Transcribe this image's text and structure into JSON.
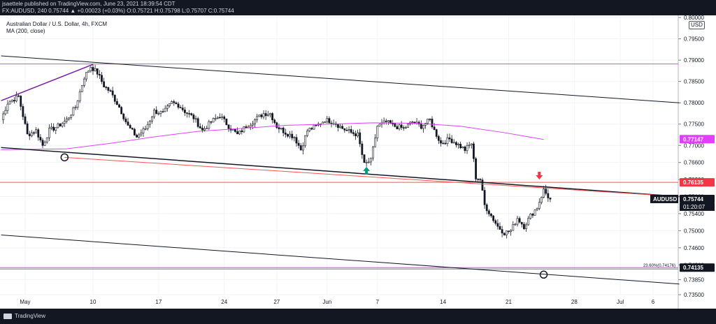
{
  "header": {
    "publisher_line": "jsaettele published on TradingView.com, June 23, 2021 18:39:54 CDT",
    "symbol_line": "FX:AUDUSD, 240  0.75744  ▲ +0.00023 (+0.03%)  O:0.75721  H:0.75798  L:0.75707  C:0.75744"
  },
  "legend": {
    "title": "Australian Dollar / U.S. Dollar, 4h, FXCM",
    "indicator": "MA (200, close)"
  },
  "currency_button": "USD",
  "footer": {
    "brand": "TradingView"
  },
  "colors": {
    "background": "#131722",
    "grid": "#1e222d",
    "candle": "#d1d4dc",
    "channel": "#131722",
    "support": "#ff5252",
    "magenta": "#e040fb",
    "ma": "#e040fb",
    "purple": "#7b1fa2",
    "arrow_up": "#089981",
    "arrow_down": "#f23645"
  },
  "chart_data": {
    "type": "candlestick",
    "symbol": "AUDUSD",
    "timeframe": "4h",
    "ylim": [
      0.735,
      0.8005
    ],
    "y_ticks": [
      "0.80000",
      "0.79500",
      "0.79000",
      "0.78500",
      "0.78000",
      "0.77500",
      "0.77000",
      "0.76600",
      "0.76200",
      "0.75800",
      "0.75400",
      "0.75000",
      "0.74600",
      "0.74200",
      "0.73850",
      "0.73500"
    ],
    "x_ticks": [
      {
        "label": "May",
        "bar": 11
      },
      {
        "label": "10",
        "bar": 42
      },
      {
        "label": "17",
        "bar": 72
      },
      {
        "label": "24",
        "bar": 102
      },
      {
        "label": "27",
        "bar": 126
      },
      {
        "label": "Jun",
        "bar": 149
      },
      {
        "label": "7",
        "bar": 172
      },
      {
        "label": "14",
        "bar": 202
      },
      {
        "label": "21",
        "bar": 232
      },
      {
        "label": "28",
        "bar": 262
      },
      {
        "label": "Jul",
        "bar": 283
      },
      {
        "label": "6",
        "bar": 298
      }
    ],
    "bar_count": 310,
    "path_anchors": [
      [
        0,
        0.776
      ],
      [
        3,
        0.78
      ],
      [
        8,
        0.7815
      ],
      [
        12,
        0.7725
      ],
      [
        16,
        0.7735
      ],
      [
        19,
        0.77
      ],
      [
        22,
        0.7735
      ],
      [
        26,
        0.7745
      ],
      [
        30,
        0.776
      ],
      [
        34,
        0.779
      ],
      [
        38,
        0.786
      ],
      [
        41,
        0.7885
      ],
      [
        44,
        0.787
      ],
      [
        47,
        0.784
      ],
      [
        50,
        0.7825
      ],
      [
        54,
        0.779
      ],
      [
        58,
        0.7745
      ],
      [
        62,
        0.772
      ],
      [
        66,
        0.774
      ],
      [
        70,
        0.778
      ],
      [
        74,
        0.7775
      ],
      [
        78,
        0.78
      ],
      [
        81,
        0.7795
      ],
      [
        84,
        0.778
      ],
      [
        88,
        0.7765
      ],
      [
        92,
        0.7735
      ],
      [
        96,
        0.7755
      ],
      [
        100,
        0.777
      ],
      [
        104,
        0.7745
      ],
      [
        108,
        0.7725
      ],
      [
        112,
        0.7745
      ],
      [
        116,
        0.776
      ],
      [
        120,
        0.7775
      ],
      [
        123,
        0.7775
      ],
      [
        126,
        0.7745
      ],
      [
        130,
        0.773
      ],
      [
        134,
        0.772
      ],
      [
        137,
        0.769
      ],
      [
        140,
        0.7735
      ],
      [
        144,
        0.7745
      ],
      [
        148,
        0.776
      ],
      [
        152,
        0.7755
      ],
      [
        156,
        0.774
      ],
      [
        160,
        0.773
      ],
      [
        163,
        0.7725
      ],
      [
        166,
        0.7655
      ],
      [
        169,
        0.7665
      ],
      [
        172,
        0.7745
      ],
      [
        176,
        0.7755
      ],
      [
        180,
        0.7745
      ],
      [
        184,
        0.774
      ],
      [
        188,
        0.7755
      ],
      [
        192,
        0.7745
      ],
      [
        196,
        0.776
      ],
      [
        198,
        0.7735
      ],
      [
        201,
        0.7705
      ],
      [
        205,
        0.7715
      ],
      [
        208,
        0.7705
      ],
      [
        212,
        0.769
      ],
      [
        215,
        0.7705
      ],
      [
        217,
        0.7625
      ],
      [
        219,
        0.762
      ],
      [
        221,
        0.756
      ],
      [
        224,
        0.7535
      ],
      [
        227,
        0.751
      ],
      [
        230,
        0.7495
      ],
      [
        233,
        0.75
      ],
      [
        236,
        0.753
      ],
      [
        239,
        0.751
      ],
      [
        242,
        0.7535
      ],
      [
        245,
        0.7555
      ],
      [
        248,
        0.7595
      ],
      [
        250,
        0.758
      ],
      [
        251,
        0.7574
      ]
    ],
    "ma200": [
      [
        0,
        0.769
      ],
      [
        30,
        0.7692
      ],
      [
        50,
        0.7705
      ],
      [
        70,
        0.772
      ],
      [
        90,
        0.7733
      ],
      [
        110,
        0.774
      ],
      [
        130,
        0.7747
      ],
      [
        150,
        0.775
      ],
      [
        170,
        0.7753
      ],
      [
        190,
        0.7752
      ],
      [
        210,
        0.7745
      ],
      [
        230,
        0.773
      ],
      [
        248,
        0.7714
      ]
    ],
    "lines": [
      {
        "name": "upper-channel",
        "from": [
          0,
          0.791
        ],
        "to": [
          310,
          0.78
        ]
      },
      {
        "name": "middle-channel",
        "from": [
          0,
          0.7695
        ],
        "to": [
          310,
          0.758
        ]
      },
      {
        "name": "lower-channel",
        "from": [
          0,
          0.749
        ],
        "to": [
          310,
          0.7375
        ]
      },
      {
        "name": "support-line",
        "from": [
          29,
          0.7672
        ],
        "to": [
          310,
          0.758
        ]
      },
      {
        "name": "purple-trend",
        "from": [
          0,
          0.7805
        ],
        "to": [
          42,
          0.789
        ]
      }
    ],
    "hlines": [
      {
        "name": "high-line",
        "y": 0.7891
      },
      {
        "name": "resistance",
        "y": 0.76135
      },
      {
        "name": "fib-level",
        "y": 0.74135
      }
    ],
    "price_labels": [
      {
        "name": "ma-label",
        "text": "0.77147",
        "y": 0.77147,
        "color": "#e040fb"
      },
      {
        "name": "resistance-label",
        "text": "0.76135",
        "y": 0.76135,
        "color": "#f23645"
      },
      {
        "name": "current-label",
        "text": "0.75744",
        "y": 0.75744,
        "color": "#131722"
      },
      {
        "name": "fib-label",
        "text": "0.74135",
        "y": 0.74135,
        "color": "#131722"
      }
    ],
    "countdown": "01:20:07",
    "symbol_tag": "AUDUSD",
    "fib_annotation": "23.60%(0.74176)",
    "markers": [
      {
        "name": "circle-low",
        "type": "circle",
        "bar": 29,
        "y": 0.7672
      },
      {
        "name": "circle-target",
        "type": "circle",
        "bar": 248,
        "y": 0.7397
      },
      {
        "name": "arrow-up",
        "type": "arrow-up",
        "bar": 167,
        "y": 0.764
      },
      {
        "name": "arrow-down",
        "type": "arrow-down",
        "bar": 246,
        "y": 0.763
      }
    ]
  }
}
